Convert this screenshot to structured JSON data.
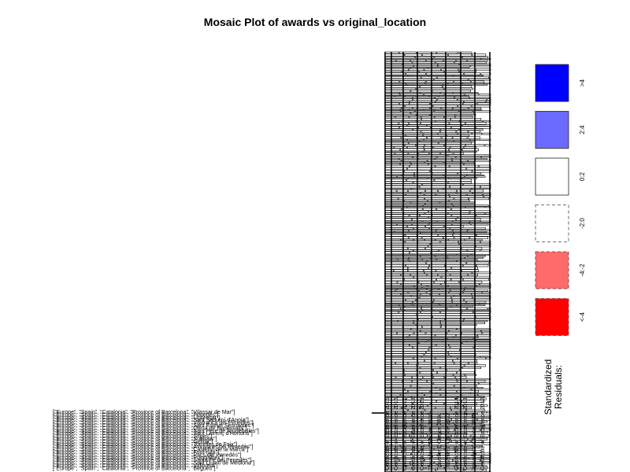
{
  "chart_data": {
    "type": "mosaic",
    "title": "Mosaic Plot of awards vs original_location",
    "xlabel": "",
    "ylabel": "",
    "legend": {
      "title_lines": [
        "Standardized",
        "Residuals:"
      ],
      "placement": "right",
      "items": [
        {
          "label": ">4",
          "color": "#0000ff",
          "border": "solid"
        },
        {
          "label": "2:4",
          "color": "#6b6bff",
          "border": "solid"
        },
        {
          "label": "0:2",
          "color": "#ffffff",
          "border": "solid"
        },
        {
          "label": "-2:0",
          "color": "#ffffff",
          "border": "dashed"
        },
        {
          "label": "-4:-2",
          "color": "#ff6b6b",
          "border": "dashed"
        },
        {
          "label": "<-4",
          "color": "#ff0000",
          "border": "dashed"
        }
      ]
    },
    "location_labels": [
      "[\"Europe\", \"Spain\", \"Catalonia\", \"Province of Barcelona\", \"Vilassar de Mar\"]",
      "[\"Europe\", \"Spain\", \"Catalonia\", \"Province of Barcelona\", \"Penedès\"]",
      "[\"Europe\", \"Spain\", \"Catalonia\", \"Province of Barcelona\", \"Llobregat\"]",
      "[\"Europe\", \"Spain\", \"Catalonia\", \"Province of Barcelona\", \"Sant Sadurní d'Anoia\"]",
      "[\"Europe\", \"Spain\", \"Catalonia\", \"Province of Barcelona\", \"Vilafranca del Penedès\"]",
      "[\"Europe\", \"Spain\", \"Catalonia\", \"Province of Barcelona\", \"Sant Esteve Sesrovires\"]",
      "[\"Europe\", \"Spain\", \"Catalonia\", \"Province of Barcelona\", \"Olesa de Bonesvalls\"]",
      "[\"Europe\", \"Spain\", \"Catalonia\", \"Province of Barcelona\", \"Sant Pere de Riudebitlles\"]",
      "[\"Europe\", \"Spain\", \"Catalonia\", \"Province of Barcelona\", \"Sant Llorenç d'Hortons\"]",
      "[\"Europe\", \"Spain\", \"Catalonia\", \"Province of Barcelona\", \"Sitges\"]",
      "[\"Europe\", \"Spain\", \"Catalonia\", \"Province of Barcelona\", \"Subirats\"]",
      "[\"Europe\", \"Spain\", \"Catalonia\", \"Province of Barcelona\", \"Gelida\"]",
      "[\"Europe\", \"Spain\", \"Catalonia\", \"Province of Barcelona\", \"Torrelles de Foix\"]",
      "[\"Europe\", \"Spain\", \"Catalonia\", \"Province of Barcelona\", \"Avinyonet del Penedès\"]",
      "[\"Europe\", \"Spain\", \"Catalonia\", \"Province of Barcelona\", \"Castellví de la Marca\"]",
      "[\"Europe\", \"Spain\", \"Catalonia\", \"Province of Barcelona\", \"Font-rubí\"]",
      "[\"Europe\", \"Spain\", \"Catalonia\", \"Province of Barcelona\", \"Pacs del Penedès\"]",
      "[\"Europe\", \"Spain\", \"Catalonia\", \"Province of Barcelona\", \"Puigdàlber\"]",
      "[\"Europe\", \"Spain\", \"Catalonia\", \"Province of Barcelona\", \"Santa Fe del Penedès\"]",
      "[\"Europe\", \"Spain\", \"Catalonia\", \"Province of Barcelona\", \"Sant Quintí de Mediona\"]",
      "[\"Europe\", \"Spain\", \"Catalonia\", \"Province of Barcelona\", \"Vallbona\"]",
      "[\"Europe\", \"Spain\", \"Catalonia\", \"Province of Barcelona\", \"Begues\"]"
    ],
    "award_labels": [
      "Certificate of Excellence 2015",
      "Certificate of Excellence 2016",
      "Certificate of Excellence 2017",
      "Certificate of Excellence 2018",
      "Certificate of Excellence 2019",
      "Travellers' Choice 2020",
      "Travellers' Choice 2021",
      "Travellers' Choice 2022",
      "Certificate of Excellence 2014",
      "Certificate of Excellence 2013",
      "Travellers' Choice 2019",
      "Certificate of Excellence 2012"
    ]
  }
}
